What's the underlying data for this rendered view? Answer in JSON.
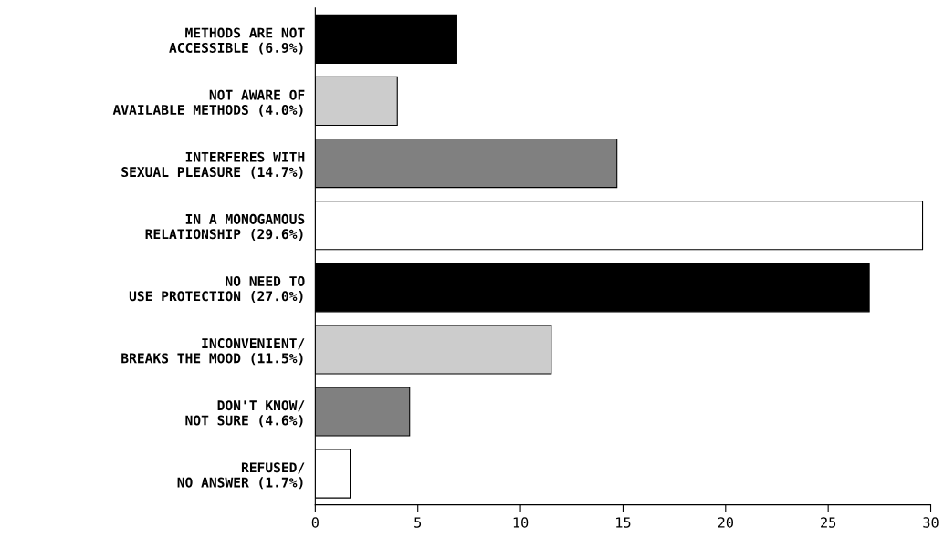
{
  "chart_data": {
    "type": "bar",
    "orientation": "horizontal",
    "categories": [
      "METHODS ARE NOT\nACCESSIBLE (6.9%)",
      "NOT AWARE OF\nAVAILABLE METHODS (4.0%)",
      "INTERFERES WITH\nSEXUAL PLEASURE (14.7%)",
      "IN A MONOGAMOUS\nRELATIONSHIP (29.6%)",
      "NO NEED TO\nUSE PROTECTION (27.0%)",
      "INCONVENIENT/\nBREAKS THE MOOD (11.5%)",
      "DON'T KNOW/\nNOT SURE (4.6%)",
      "REFUSED/\nNO ANSWER (1.7%)"
    ],
    "values": [
      6.9,
      4.0,
      14.7,
      29.6,
      27.0,
      11.5,
      4.6,
      1.7
    ],
    "colors": [
      "#000000",
      "#cccccc",
      "#808080",
      "#ffffff",
      "#000000",
      "#cccccc",
      "#808080",
      "#ffffff"
    ],
    "xlim": [
      0,
      30
    ],
    "xticks": [
      0,
      5,
      10,
      15,
      20,
      25,
      30
    ],
    "grid": false,
    "legend": false
  }
}
